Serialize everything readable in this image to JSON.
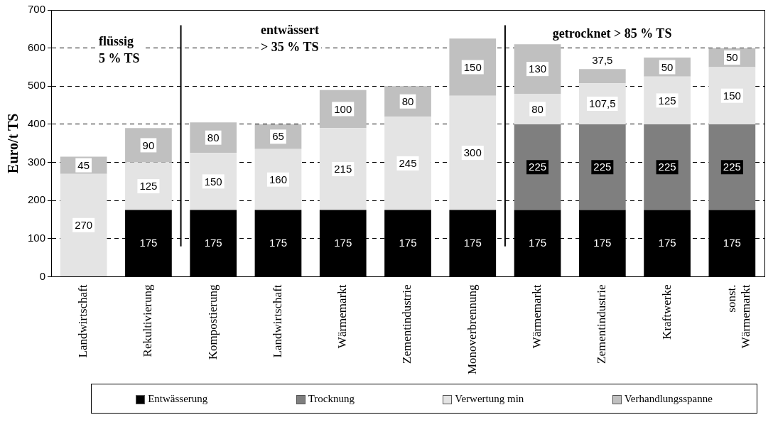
{
  "chart_data": {
    "type": "bar",
    "stacked": true,
    "ylabel": "Euro/t TS",
    "categories": [
      "Landwirtschaft",
      "Rekultivierung",
      "Kompostierung",
      "Landwirtschaft",
      "Wärmemarkt",
      "Zementindustrie",
      "Monoverbrennung",
      "Wärmemarkt",
      "Zementindustrie",
      "Kraftwerke",
      "sonst. Wärmemarkt"
    ],
    "series": [
      {
        "name": "Entwässerung",
        "color": "#000000",
        "values": [
          null,
          175,
          175,
          175,
          175,
          175,
          175,
          175,
          175,
          175,
          175
        ],
        "value_labels": [
          null,
          "175",
          "175",
          "175",
          "175",
          "175",
          "175",
          "175",
          "175",
          "175",
          "175"
        ]
      },
      {
        "name": "Trocknung",
        "color": "#7f7f7f",
        "values": [
          null,
          null,
          null,
          null,
          null,
          null,
          null,
          225,
          225,
          225,
          225
        ],
        "value_labels": [
          null,
          null,
          null,
          null,
          null,
          null,
          null,
          "225",
          "225",
          "225",
          "225"
        ]
      },
      {
        "name": "Verwertung min",
        "color": "#e4e4e4",
        "values": [
          270,
          125,
          150,
          160,
          215,
          245,
          300,
          80,
          107.5,
          125,
          150
        ],
        "value_labels": [
          "270",
          "125",
          "150",
          "160",
          "215",
          "245",
          "300",
          "80",
          "107,5",
          "125",
          "150"
        ]
      },
      {
        "name": "Verhandlungsspanne",
        "color": "#c0c0c0",
        "values": [
          45,
          90,
          80,
          65,
          100,
          80,
          150,
          130,
          37.5,
          50,
          50
        ],
        "value_labels": [
          "45",
          "90",
          "80",
          "65",
          "100",
          "80",
          "150",
          "130",
          "37,5",
          "50",
          "50"
        ]
      }
    ],
    "ylim": [
      0,
      700
    ],
    "yticks": [
      0,
      100,
      200,
      300,
      400,
      500,
      600,
      700
    ],
    "grid": "y",
    "legend": "bottom",
    "annotations": [
      "flüssig\n5 % TS",
      "entwässert\n> 35 % TS",
      "getrocknet > 85 % TS"
    ]
  }
}
